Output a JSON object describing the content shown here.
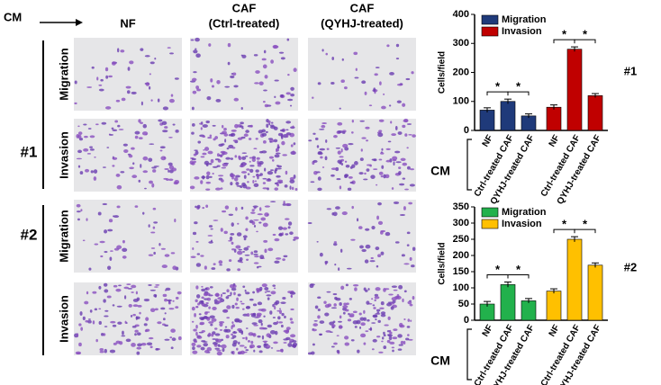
{
  "figure": {
    "cm_label": "CM",
    "columns": [
      [
        "NF"
      ],
      [
        "CAF",
        "(Ctrl-treated)"
      ],
      [
        "CAF",
        "(QYHJ-treated)"
      ]
    ],
    "panels": [
      {
        "label": "#1",
        "rows": [
          "Migration",
          "Invasion"
        ]
      },
      {
        "label": "#2",
        "rows": [
          "Migration",
          "Invasion"
        ]
      }
    ]
  },
  "chart_data": [
    {
      "type": "bar",
      "panel_label": "#1",
      "ylabel": "Cells/field",
      "xlabel": "CM",
      "categories": [
        "NF",
        "Ctrl-treated CAF",
        "QYHJ-treated CAF"
      ],
      "series": [
        {
          "name": "Migration",
          "color": "#1f3a7a",
          "values": [
            70,
            100,
            50
          ],
          "errors": [
            8,
            8,
            7
          ]
        },
        {
          "name": "Invasion",
          "color": "#c00000",
          "values": [
            80,
            280,
            120
          ],
          "errors": [
            8,
            8,
            7
          ]
        }
      ],
      "ylim": [
        0,
        400
      ],
      "yticks": [
        0,
        100,
        200,
        300,
        400
      ],
      "legend": "upper left",
      "annotations": [
        "*",
        "*",
        "*",
        "*"
      ]
    },
    {
      "type": "bar",
      "panel_label": "#2",
      "ylabel": "Cells/field",
      "xlabel": "CM",
      "categories": [
        "NF",
        "Ctrl-treated CAF",
        "QYHJ-treated CAF"
      ],
      "series": [
        {
          "name": "Migration",
          "color": "#22b14c",
          "values": [
            50,
            110,
            60
          ],
          "errors": [
            8,
            8,
            7
          ]
        },
        {
          "name": "Invasion",
          "color": "#ffc000",
          "values": [
            90,
            250,
            170
          ],
          "errors": [
            7,
            8,
            7
          ]
        }
      ],
      "ylim": [
        0,
        350
      ],
      "yticks": [
        0,
        50,
        100,
        150,
        200,
        250,
        300,
        350
      ],
      "legend": "upper left",
      "annotations": [
        "*",
        "*",
        "*",
        "*"
      ]
    }
  ]
}
